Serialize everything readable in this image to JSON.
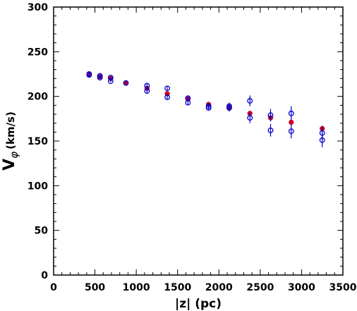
{
  "chart_data": {
    "type": "scatter",
    "xlabel": "|z| (pc)",
    "ylabel_main": "V",
    "ylabel_sub": "φ",
    "ylabel_unit": "(km/s)",
    "xlim": [
      0,
      3500
    ],
    "ylim": [
      0,
      300
    ],
    "x_ticks": [
      0,
      500,
      1000,
      1500,
      2000,
      2500,
      3000,
      3500
    ],
    "y_ticks": [
      0,
      50,
      100,
      150,
      200,
      250,
      300
    ],
    "grid": false,
    "series": [
      {
        "marker": "filled-circle",
        "color": "#d0021b",
        "points": [
          {
            "x": 430,
            "y": 225
          },
          {
            "x": 560,
            "y": 222
          },
          {
            "x": 690,
            "y": 220
          },
          {
            "x": 875,
            "y": 215
          },
          {
            "x": 1130,
            "y": 209
          },
          {
            "x": 1375,
            "y": 203
          },
          {
            "x": 1625,
            "y": 197
          },
          {
            "x": 1875,
            "y": 191
          },
          {
            "x": 2125,
            "y": 188
          },
          {
            "x": 2375,
            "y": 181
          },
          {
            "x": 2625,
            "y": 176
          },
          {
            "x": 2875,
            "y": 171
          },
          {
            "x": 3250,
            "y": 164
          }
        ]
      },
      {
        "marker": "open-circle",
        "color": "#0000cc",
        "points": [
          {
            "x": 430,
            "y": 225,
            "err": 1
          },
          {
            "x": 430,
            "y": 224,
            "err": 1
          },
          {
            "x": 560,
            "y": 223,
            "err": 1
          },
          {
            "x": 560,
            "y": 221,
            "err": 1
          },
          {
            "x": 690,
            "y": 221,
            "err": 1
          },
          {
            "x": 690,
            "y": 217,
            "err": 1
          },
          {
            "x": 875,
            "y": 215,
            "err": 1
          },
          {
            "x": 1130,
            "y": 212,
            "err": 2
          },
          {
            "x": 1130,
            "y": 206,
            "err": 2
          },
          {
            "x": 1375,
            "y": 209,
            "err": 2
          },
          {
            "x": 1375,
            "y": 199,
            "err": 2
          },
          {
            "x": 1625,
            "y": 198,
            "err": 2
          },
          {
            "x": 1625,
            "y": 193,
            "err": 2
          },
          {
            "x": 1875,
            "y": 189,
            "err": 2
          },
          {
            "x": 1875,
            "y": 187,
            "err": 2
          },
          {
            "x": 2125,
            "y": 189,
            "err": 4
          },
          {
            "x": 2125,
            "y": 187,
            "err": 4
          },
          {
            "x": 2375,
            "y": 195,
            "err": 6
          },
          {
            "x": 2375,
            "y": 176,
            "err": 6
          },
          {
            "x": 2625,
            "y": 179,
            "err": 7
          },
          {
            "x": 2625,
            "y": 162,
            "err": 7
          },
          {
            "x": 2875,
            "y": 181,
            "err": 8
          },
          {
            "x": 2875,
            "y": 161,
            "err": 8
          },
          {
            "x": 3250,
            "y": 159,
            "err": 8
          },
          {
            "x": 3250,
            "y": 151,
            "err": 8
          }
        ]
      }
    ]
  }
}
